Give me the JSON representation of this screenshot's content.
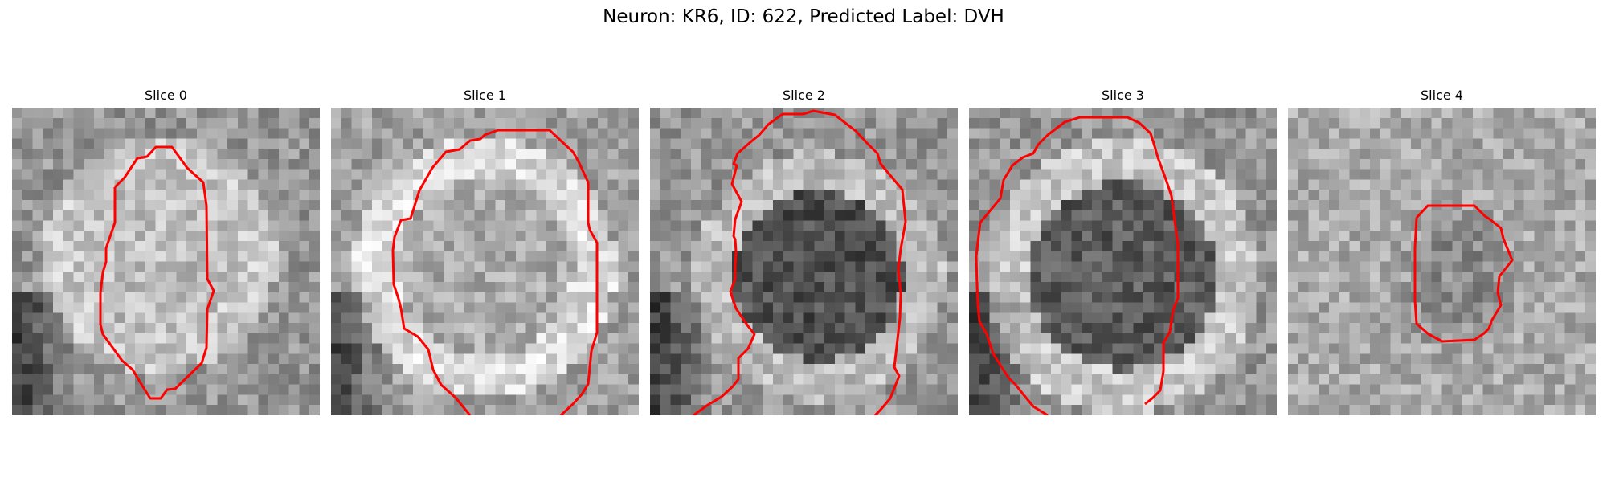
{
  "figure": {
    "title": "Neuron: KR6, ID: 622, Predicted Label: DVH"
  },
  "contour_color": "#ff0000",
  "panels": [
    {
      "title": "Slice 0"
    },
    {
      "title": "Slice 1"
    },
    {
      "title": "Slice 2"
    },
    {
      "title": "Slice 3"
    },
    {
      "title": "Slice 4"
    }
  ]
}
